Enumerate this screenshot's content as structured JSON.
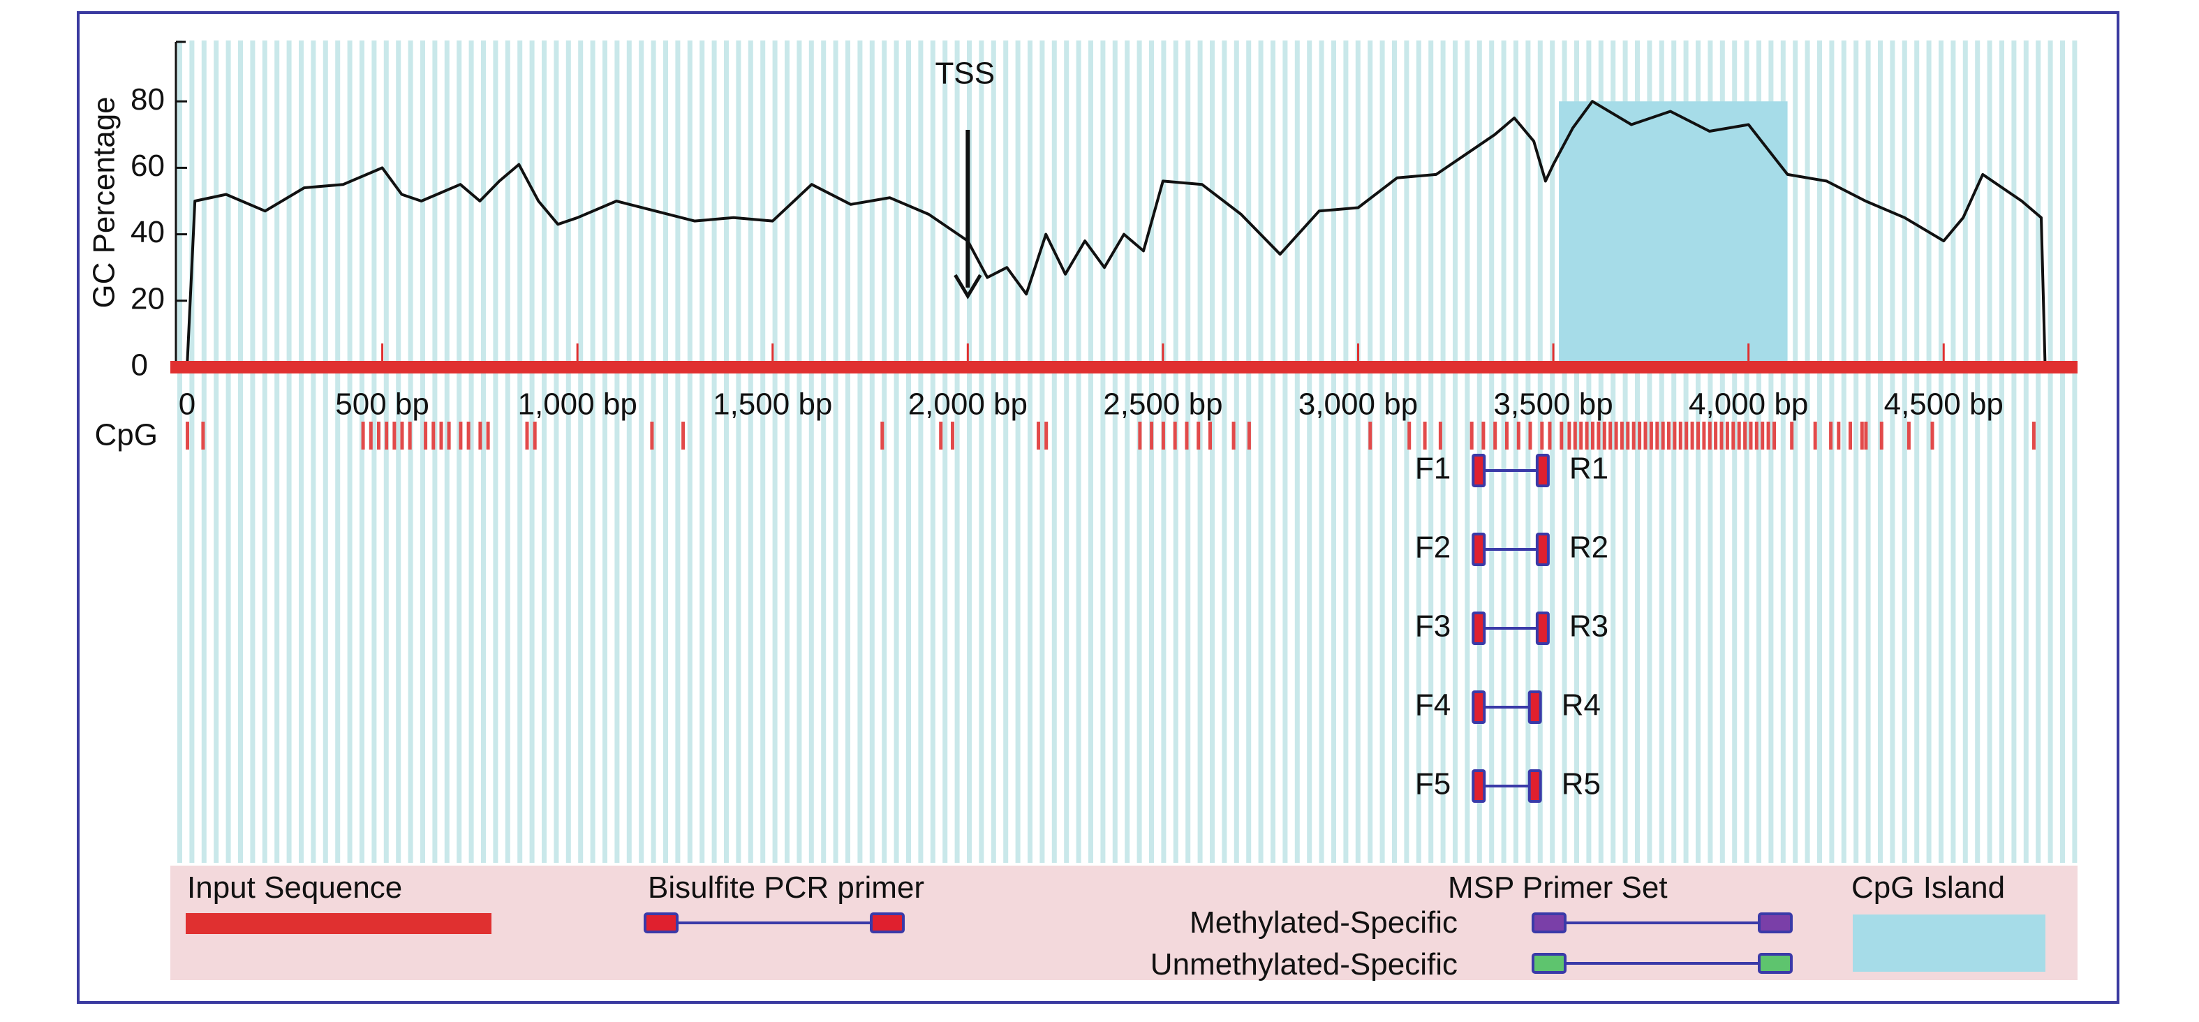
{
  "chart_data": {
    "type": "line",
    "ylabel": "GC Percentage",
    "yticks": [
      0,
      20,
      40,
      60,
      80
    ],
    "xticks": [
      "0",
      "500 bp",
      "1,000 bp",
      "1,500 bp",
      "2,000 bp",
      "2,500 bp",
      "3,000 bp",
      "3,500 bp",
      "4,000 bp",
      "4,500 bp"
    ],
    "xtick_values": [
      0,
      500,
      1000,
      1500,
      2000,
      2500,
      3000,
      3500,
      4000,
      4500
    ],
    "xlim": [
      0,
      4800
    ],
    "ylim": [
      0,
      100
    ],
    "series": [
      {
        "x": [
          0,
          20,
          100,
          200,
          300,
          400,
          500,
          550,
          600,
          700,
          750,
          800,
          850,
          900,
          950,
          1000,
          1100,
          1200,
          1300,
          1400,
          1500,
          1600,
          1700,
          1800,
          1900,
          2000,
          2050,
          2100,
          2150,
          2200,
          2250,
          2300,
          2350,
          2400,
          2450,
          2500,
          2600,
          2700,
          2800,
          2900,
          3000,
          3100,
          3200,
          3300,
          3350,
          3400,
          3450,
          3480,
          3500,
          3550,
          3600,
          3700,
          3800,
          3900,
          4000,
          4100,
          4200,
          4300,
          4400,
          4500,
          4550,
          4600,
          4700,
          4750,
          4760
        ],
        "values": [
          0,
          50,
          52,
          47,
          54,
          55,
          60,
          52,
          50,
          55,
          50,
          56,
          61,
          50,
          43,
          45,
          50,
          47,
          44,
          45,
          44,
          55,
          49,
          51,
          46,
          38,
          27,
          30,
          22,
          40,
          28,
          38,
          30,
          40,
          35,
          56,
          55,
          46,
          34,
          47,
          48,
          57,
          58,
          66,
          70,
          75,
          68,
          56,
          61,
          72,
          80,
          73,
          77,
          71,
          73,
          58,
          56,
          50,
          45,
          38,
          45,
          58,
          50,
          45,
          0
        ]
      }
    ],
    "annotations": {
      "tss": {
        "label": "TSS",
        "x": 2000
      },
      "cpg_island": {
        "start": 3500,
        "end": 4100
      }
    },
    "cpg_track": {
      "label": "CpG",
      "positions": [
        0,
        40,
        450,
        470,
        490,
        510,
        530,
        550,
        570,
        610,
        630,
        650,
        670,
        700,
        720,
        750,
        770,
        870,
        890,
        1190,
        1270,
        1780,
        1930,
        1960,
        2180,
        2200,
        2440,
        2470,
        2500,
        2530,
        2560,
        2590,
        2620,
        2680,
        2720,
        3030,
        3130,
        3170,
        3210,
        3290,
        3320,
        3350,
        3380,
        3410,
        3440,
        3470,
        3490,
        3520,
        3540,
        3555,
        3570,
        3585,
        3600,
        3615,
        3630,
        3645,
        3660,
        3675,
        3690,
        3705,
        3720,
        3735,
        3750,
        3765,
        3780,
        3795,
        3810,
        3825,
        3840,
        3855,
        3870,
        3885,
        3900,
        3915,
        3930,
        3945,
        3960,
        3975,
        3990,
        4005,
        4020,
        4035,
        4050,
        4065,
        4110,
        4170,
        4210,
        4230,
        4260,
        4290,
        4300,
        4340,
        4410,
        4470,
        4730
      ]
    },
    "primers": [
      {
        "f": "F1",
        "r": "R1",
        "start": 3300,
        "end": 3480
      },
      {
        "f": "F2",
        "r": "R2",
        "start": 3300,
        "end": 3480
      },
      {
        "f": "F3",
        "r": "R3",
        "start": 3300,
        "end": 3480
      },
      {
        "f": "F4",
        "r": "R4",
        "start": 3300,
        "end": 3460
      },
      {
        "f": "F5",
        "r": "R5",
        "start": 3300,
        "end": 3460
      }
    ]
  },
  "legend": {
    "input_sequence": "Input Sequence",
    "bisulfite_pcr_primer": "Bisulfite PCR primer",
    "msp_primer_set": "MSP Primer Set",
    "methylated_specific": "Methylated-Specific",
    "unmethylated_specific": "Unmethylated-Specific",
    "cpg_island": "CpG Island"
  },
  "colors": {
    "stripe": "#c9e8ea",
    "input_sequence": "#e03030",
    "cpg_island": "#a6dce8",
    "primer_line": "#3a3aa8",
    "bisulfite_fill": "#e0202e",
    "methylated_fill": "#7a3fa8",
    "unmethylated_fill": "#5ec46e",
    "legend_bg": "#f3d9dc"
  }
}
